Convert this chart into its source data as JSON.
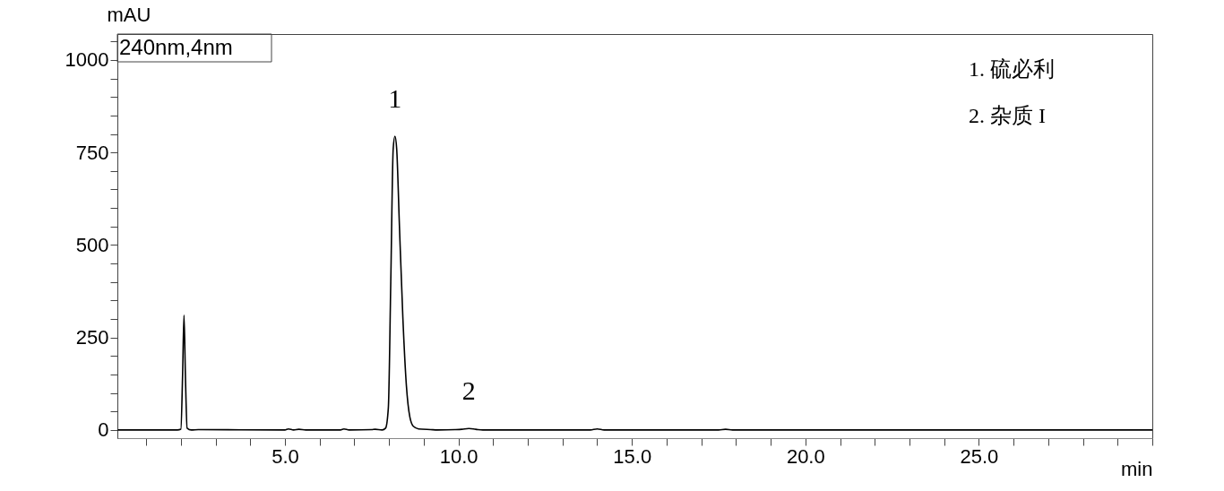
{
  "chart_data": {
    "type": "line",
    "xlabel": "min",
    "ylabel": "mAU",
    "x": [
      0.18,
      1.9,
      2.0,
      2.05,
      2.09,
      2.13,
      2.18,
      2.3,
      2.5,
      5.0,
      5.1,
      5.25,
      5.4,
      5.6,
      6.6,
      6.7,
      6.85,
      7.5,
      7.6,
      7.8,
      7.9,
      7.98,
      8.05,
      8.12,
      8.17,
      8.22,
      8.3,
      8.4,
      8.5,
      8.6,
      8.7,
      8.85,
      9.2,
      9.4,
      9.9,
      10.1,
      10.3,
      10.5,
      10.7,
      13.8,
      14.0,
      14.2,
      17.5,
      17.7,
      17.9,
      30
    ],
    "series": [
      {
        "color": "#000000",
        "values": [
          0,
          0,
          2,
          150,
          310,
          150,
          5,
          0,
          1,
          0,
          3,
          0,
          2,
          0,
          0,
          3,
          0,
          1,
          2,
          0,
          5,
          60,
          400,
          760,
          794,
          760,
          550,
          300,
          120,
          35,
          10,
          3,
          1,
          0,
          1,
          2,
          4,
          2,
          0,
          0,
          3,
          0,
          0,
          2,
          0,
          0
        ]
      }
    ],
    "xlim": [
      0.17,
      30
    ],
    "xticks": [
      {
        "value": 1,
        "label": null
      },
      {
        "value": 2,
        "label": null
      },
      {
        "value": 3,
        "label": null
      },
      {
        "value": 4,
        "label": null
      },
      {
        "value": 5,
        "label": "5.0"
      },
      {
        "value": 6,
        "label": null
      },
      {
        "value": 7,
        "label": null
      },
      {
        "value": 8,
        "label": null
      },
      {
        "value": 9,
        "label": null
      },
      {
        "value": 10,
        "label": "10.0"
      },
      {
        "value": 11,
        "label": null
      },
      {
        "value": 12,
        "label": null
      },
      {
        "value": 13,
        "label": null
      },
      {
        "value": 14,
        "label": null
      },
      {
        "value": 15,
        "label": "15.0"
      },
      {
        "value": 16,
        "label": null
      },
      {
        "value": 17,
        "label": null
      },
      {
        "value": 18,
        "label": null
      },
      {
        "value": 19,
        "label": null
      },
      {
        "value": 20,
        "label": "20.0"
      },
      {
        "value": 21,
        "label": null
      },
      {
        "value": 22,
        "label": null
      },
      {
        "value": 23,
        "label": null
      },
      {
        "value": 24,
        "label": null
      },
      {
        "value": 25,
        "label": "25.0"
      },
      {
        "value": 26,
        "label": null
      },
      {
        "value": 27,
        "label": null
      },
      {
        "value": 28,
        "label": null
      },
      {
        "value": 29,
        "label": null
      },
      {
        "value": 30,
        "label": null
      }
    ],
    "ylim": [
      -22,
      1070
    ],
    "yticks": [
      0,
      {
        "value": 50,
        "label": null
      },
      {
        "value": 100,
        "label": null
      },
      {
        "value": 150,
        "label": null
      },
      {
        "value": 200,
        "label": null
      },
      250,
      {
        "value": 300,
        "label": null
      },
      {
        "value": 350,
        "label": null
      },
      {
        "value": 400,
        "label": null
      },
      {
        "value": 450,
        "label": null
      },
      500,
      {
        "value": 550,
        "label": null
      },
      {
        "value": 600,
        "label": null
      },
      {
        "value": 650,
        "label": null
      },
      {
        "value": 700,
        "label": null
      },
      750,
      {
        "value": 800,
        "label": null
      },
      {
        "value": 850,
        "label": null
      },
      {
        "value": 900,
        "label": null
      },
      {
        "value": 950,
        "label": null
      },
      1000,
      {
        "value": 1050,
        "label": null
      }
    ],
    "annotations": [
      "240nm,4nm",
      {
        "text": "1",
        "x": 8.17,
        "y": 794
      },
      {
        "text": "2",
        "x": 10.3,
        "y": 4
      },
      "1.    硫必利",
      "2.    杂质 I"
    ],
    "grid": false,
    "marker": "none",
    "line_style": "solid"
  }
}
